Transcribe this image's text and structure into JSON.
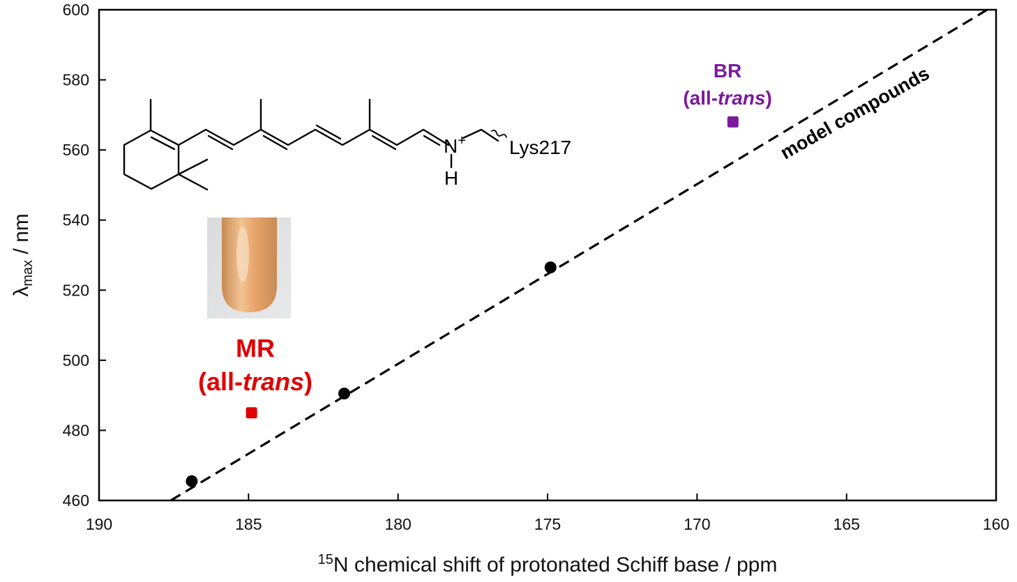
{
  "chart_data": {
    "type": "scatter",
    "title": "",
    "xlabel": {
      "superscript": "15",
      "text": "N chemical shift of protonated Schiff base / ppm"
    },
    "ylabel": {
      "main": "λ",
      "subscript": "max",
      "rest": " / nm"
    },
    "xlim": [
      190,
      160
    ],
    "ylim": [
      460,
      600
    ],
    "x_reversed": true,
    "x_ticks": [
      190,
      185,
      180,
      175,
      170,
      165,
      160
    ],
    "y_ticks": [
      460,
      480,
      500,
      520,
      540,
      560,
      580,
      600
    ],
    "grid": false,
    "series": [
      {
        "marker": "circle",
        "color": "#000000",
        "points": [
          {
            "x": 186.9,
            "y": 465.5
          },
          {
            "x": 181.8,
            "y": 490.5
          },
          {
            "x": 174.9,
            "y": 526.5
          }
        ]
      },
      {
        "marker": "square",
        "color": "#e00000",
        "points": [
          {
            "x": 184.9,
            "y": 485
          }
        ]
      },
      {
        "marker": "square",
        "color": "#7a1a9e",
        "points": [
          {
            "x": 168.8,
            "y": 568
          }
        ]
      }
    ],
    "fit_line": {
      "style": "dashed",
      "color": "#000000",
      "label": "model compounds",
      "from": {
        "x": 187.6,
        "y": 460
      },
      "to": {
        "x": 160.3,
        "y": 600
      }
    },
    "annotations": [
      {
        "line1": "MR",
        "line2_prefix": "(all-",
        "line2_italic": "trans",
        "line2_suffix": ")",
        "color": "#e00000"
      },
      {
        "line1": "BR",
        "line2_prefix": "(all-",
        "line2_italic": "trans",
        "line2_suffix": ")",
        "color": "#7a1a9e"
      }
    ],
    "structure": {
      "nitrogen": "N",
      "charge": "+",
      "hydrogen": "H",
      "residue": "Lys217"
    },
    "photo": "orange-sample-tube"
  }
}
